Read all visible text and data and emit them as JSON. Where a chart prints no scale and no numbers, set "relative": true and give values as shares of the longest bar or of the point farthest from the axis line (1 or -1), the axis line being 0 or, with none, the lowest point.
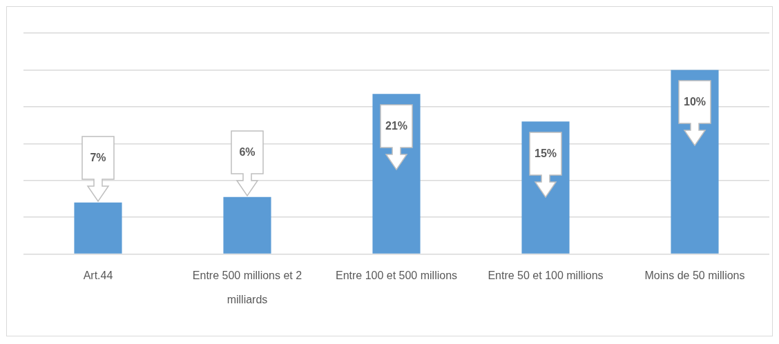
{
  "chart_data": {
    "type": "bar",
    "relative": true,
    "categories": [
      "Art.44",
      "Entre 500 millions et 2 milliards",
      "Entre 100 et 500 millions",
      "Entre 50 et 100 millions",
      "Moins de 50 millions"
    ],
    "values": [
      0.28,
      0.31,
      0.87,
      0.72,
      1
    ],
    "annotations": [
      "7%",
      "6%",
      "21%",
      "15%",
      "10%"
    ],
    "color": "#5b9bd5",
    "grid": "y",
    "legend": false
  }
}
